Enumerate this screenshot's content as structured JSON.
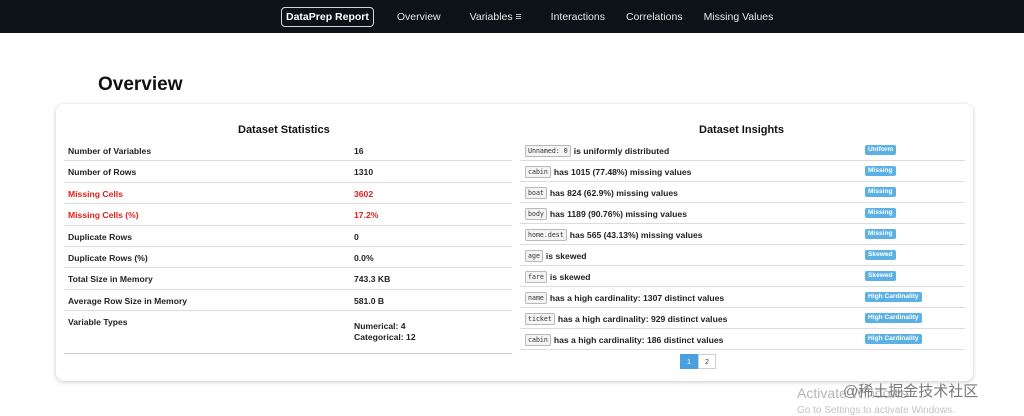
{
  "navbar": {
    "brand": "DataPrep Report",
    "links": [
      "Overview",
      "Variables ≡",
      "Interactions",
      "Correlations",
      "Missing Values"
    ]
  },
  "page": {
    "title": "Overview"
  },
  "stats": {
    "title": "Dataset Statistics",
    "rows": [
      {
        "label": "Number of Variables",
        "value": "16"
      },
      {
        "label": "Number of Rows",
        "value": "1310"
      },
      {
        "label": "Missing Cells",
        "value": "3602"
      },
      {
        "label": "Missing Cells (%)",
        "value": "17.2%"
      },
      {
        "label": "Duplicate Rows",
        "value": "0"
      },
      {
        "label": "Duplicate Rows (%)",
        "value": "0.0%"
      },
      {
        "label": "Total Size in Memory",
        "value": "743.3 KB"
      },
      {
        "label": "Average Row Size in Memory",
        "value": "581.0 B"
      }
    ],
    "types": {
      "label": "Variable Types",
      "line1": "Numerical: 4",
      "line2": "Categorical: 12"
    }
  },
  "insights": {
    "title": "Dataset Insights",
    "rows": [
      {
        "code": "Unnamed: 0",
        "text": "is uniformly distributed",
        "tag": "Uniform"
      },
      {
        "code": "cabin",
        "text": "has 1015 (77.48%) missing values",
        "tag": "Missing"
      },
      {
        "code": "boat",
        "text": "has 824 (62.9%) missing values",
        "tag": "Missing"
      },
      {
        "code": "body",
        "text": "has 1189 (90.76%) missing values",
        "tag": "Missing"
      },
      {
        "code": "home.dest",
        "text": "has 565 (43.13%) missing values",
        "tag": "Missing"
      },
      {
        "code": "age",
        "text": "is skewed",
        "tag": "Skewed"
      },
      {
        "code": "fare",
        "text": "is skewed",
        "tag": "Skewed"
      },
      {
        "code": "name",
        "text": "has a high cardinality: 1307 distinct values",
        "tag": "High Cardinality"
      },
      {
        "code": "ticket",
        "text": "has a high cardinality: 929 distinct values",
        "tag": "High Cardinality"
      },
      {
        "code": "cabin",
        "text": "has a high cardinality: 186 distinct values",
        "tag": "High Cardinality"
      }
    ],
    "pages": [
      "1",
      "2"
    ]
  },
  "overlay": {
    "activate": "Activate Windows",
    "activate_sub": "Go to Settings to activate Windows.",
    "site": "@稀土掘金技术社区"
  },
  "colors": {
    "navbar_bg": "#0d1218",
    "warning": "#e0201b",
    "tag_bg": "#5bb1e3",
    "pager_active": "#4a9fe0"
  }
}
